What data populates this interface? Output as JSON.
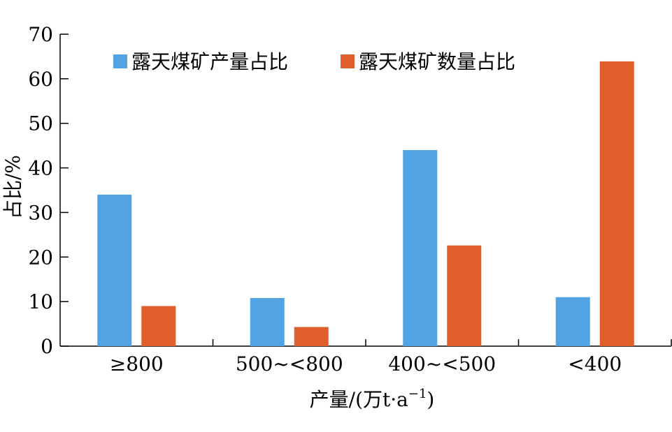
{
  "chart_data": {
    "type": "bar",
    "categories": [
      "≥800",
      "500~<800",
      "400~<500",
      "<400"
    ],
    "series": [
      {
        "name": "露天煤矿产量占比",
        "color": "#52A3E4",
        "values": [
          34,
          10.8,
          44,
          11
        ]
      },
      {
        "name": "露天煤矿数量占比",
        "color": "#E05E2B",
        "values": [
          9,
          4.3,
          22.6,
          63.9
        ]
      }
    ],
    "xlabel": "产量/(万t·a",
    "xlabel_sup": "−1",
    "xlabel_end": ")",
    "ylabel": "占比/%",
    "ylim": [
      0,
      70
    ],
    "yticks": [
      0,
      10,
      20,
      30,
      40,
      50,
      60,
      70
    ],
    "grid": false,
    "legend_position": "top"
  }
}
